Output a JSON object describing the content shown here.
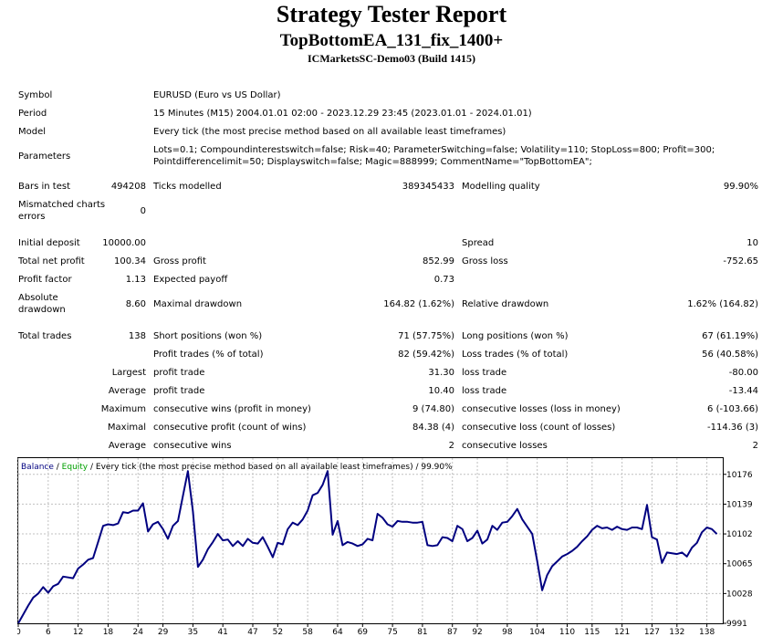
{
  "header": {
    "title": "Strategy Tester Report",
    "subtitle": "TopBottomEA_131_fix_1400+",
    "server": "ICMarketsSC-Demo03 (Build 1415)"
  },
  "info": {
    "symbol_label": "Symbol",
    "symbol_value": "EURUSD (Euro vs US Dollar)",
    "period_label": "Period",
    "period_value": "15 Minutes (M15) 2004.01.01 02:00 - 2023.12.29 23:45 (2023.01.01 - 2024.01.01)",
    "model_label": "Model",
    "model_value": "Every tick (the most precise method based on all available least timeframes)",
    "parameters_label": "Parameters",
    "parameters_line1": "Lots=0.1; Compoundinterestswitch=false; Risk=40; ParameterSwitching=false; Volatility=110; StopLoss=800; Profit=300;",
    "parameters_line2": "Pointdifferencelimit=50; Displayswitch=false; Magic=888999; CommentName=\"TopBottomEA\";"
  },
  "stats": {
    "bars_label": "Bars in test",
    "bars_value": "494208",
    "ticks_label": "Ticks modelled",
    "ticks_value": "389345433",
    "quality_label": "Modelling quality",
    "quality_value": "99.90%",
    "mismatched_label": "Mismatched charts errors",
    "mismatched_value": "0",
    "deposit_label": "Initial deposit",
    "deposit_value": "10000.00",
    "spread_label": "Spread",
    "spread_value": "10",
    "netprofit_label": "Total net profit",
    "netprofit_value": "100.34",
    "grossprofit_label": "Gross profit",
    "grossprofit_value": "852.99",
    "grossloss_label": "Gross loss",
    "grossloss_value": "-752.65",
    "pf_label": "Profit factor",
    "pf_value": "1.13",
    "payoff_label": "Expected payoff",
    "payoff_value": "0.73",
    "absdd_label": "Absolute drawdown",
    "absdd_value": "8.60",
    "maxdd_label": "Maximal drawdown",
    "maxdd_value": "164.82 (1.62%)",
    "reldd_label": "Relative drawdown",
    "reldd_value": "1.62% (164.82)",
    "trades_label": "Total trades",
    "trades_value": "138",
    "short_label": "Short positions (won %)",
    "short_value": "71 (57.75%)",
    "long_label": "Long positions (won %)",
    "long_value": "67 (61.19%)",
    "ptrades_label": "Profit trades (% of total)",
    "ptrades_value": "82 (59.42%)",
    "ltrades_label": "Loss trades (% of total)",
    "ltrades_value": "56 (40.58%)",
    "largest_label": "Largest",
    "largest_p_label": "profit trade",
    "largest_p_value": "31.30",
    "largest_l_label": "loss trade",
    "largest_l_value": "-80.00",
    "average_label": "Average",
    "average_p_label": "profit trade",
    "average_p_value": "10.40",
    "average_l_label": "loss trade",
    "average_l_value": "-13.44",
    "maximum_label": "Maximum",
    "maximum_w_label": "consecutive wins (profit in money)",
    "maximum_w_value": "9 (74.80)",
    "maximum_l_label": "consecutive losses (loss in money)",
    "maximum_l_value": "6 (-103.66)",
    "maximal_label": "Maximal",
    "maximal_w_label": "consecutive profit (count of wins)",
    "maximal_w_value": "84.38 (4)",
    "maximal_l_label": "consecutive loss (count of losses)",
    "maximal_l_value": "-114.36 (3)",
    "avgc_label": "Average",
    "avgc_w_label": "consecutive wins",
    "avgc_w_value": "2",
    "avgc_l_label": "consecutive losses",
    "avgc_l_value": "2"
  },
  "chart_data": {
    "type": "line",
    "legend": {
      "balance": "Balance",
      "sep1": " / ",
      "equity": "Equity",
      "rest": " / Every tick (the most precise method based on all available least timeframes) / 99.90%"
    },
    "colors": {
      "balance": "#000080",
      "equity": "#00a000",
      "grid": "#c0c0c0"
    },
    "ylim": [
      9991,
      10195
    ],
    "xlim": [
      0,
      141
    ],
    "y_ticks": [
      10176,
      10139,
      10102,
      10065,
      10028,
      9991
    ],
    "x_ticks": [
      0,
      6,
      12,
      18,
      24,
      29,
      35,
      41,
      47,
      52,
      58,
      64,
      69,
      75,
      81,
      87,
      92,
      98,
      104,
      110,
      115,
      121,
      127,
      132,
      138
    ],
    "series": [
      {
        "name": "Balance",
        "x": [
          0,
          1,
          2,
          3,
          4,
          5,
          6,
          7,
          8,
          9,
          10,
          11,
          12,
          13,
          14,
          15,
          16,
          17,
          18,
          19,
          20,
          21,
          22,
          23,
          24,
          25,
          26,
          27,
          28,
          29,
          30,
          31,
          32,
          33,
          34,
          35,
          36,
          37,
          38,
          39,
          40,
          41,
          42,
          43,
          44,
          45,
          46,
          47,
          48,
          49,
          50,
          51,
          52,
          53,
          54,
          55,
          56,
          57,
          58,
          59,
          60,
          61,
          62,
          63,
          64,
          65,
          66,
          67,
          68,
          69,
          70,
          71,
          72,
          73,
          74,
          75,
          76,
          77,
          78,
          79,
          80,
          81,
          82,
          83,
          84,
          85,
          86,
          87,
          88,
          89,
          90,
          91,
          92,
          93,
          94,
          95,
          96,
          97,
          98,
          99,
          100,
          101,
          102,
          103,
          104,
          105,
          106,
          107,
          108,
          109,
          110,
          111,
          112,
          113,
          114,
          115,
          116,
          117,
          118,
          119,
          120,
          121,
          122,
          123,
          124,
          125,
          126,
          127,
          128,
          129,
          130,
          131,
          132,
          133,
          134,
          135,
          136,
          137,
          138,
          139,
          140
        ],
        "values": [
          9991,
          10002,
          10013,
          10023,
          10028,
          10036,
          10029,
          10037,
          10040,
          10049,
          10048,
          10047,
          10059,
          10064,
          10070,
          10072,
          10092,
          10112,
          10114,
          10113,
          10115,
          10129,
          10128,
          10131,
          10131,
          10140,
          10105,
          10114,
          10117,
          10108,
          10096,
          10112,
          10118,
          10149,
          10180,
          10130,
          10061,
          10070,
          10083,
          10092,
          10102,
          10094,
          10095,
          10087,
          10093,
          10087,
          10096,
          10091,
          10090,
          10098,
          10086,
          10073,
          10091,
          10089,
          10108,
          10116,
          10113,
          10120,
          10131,
          10150,
          10153,
          10163,
          10180,
          10101,
          10118,
          10088,
          10092,
          10090,
          10087,
          10089,
          10096,
          10094,
          10127,
          10122,
          10114,
          10111,
          10118,
          10117,
          10117,
          10116,
          10116,
          10117,
          10088,
          10087,
          10088,
          10098,
          10097,
          10093,
          10112,
          10108,
          10093,
          10097,
          10106,
          10090,
          10095,
          10112,
          10107,
          10116,
          10117,
          10124,
          10133,
          10120,
          10111,
          10102,
          10068,
          10032,
          10051,
          10062,
          10068,
          10074,
          10077,
          10081,
          10086,
          10093,
          10099,
          10107,
          10112,
          10109,
          10110,
          10107,
          10111,
          10108,
          10107,
          10110,
          10110,
          10108,
          10138,
          10098,
          10095,
          10066,
          10079,
          10078,
          10077,
          10079,
          10074,
          10085,
          10091,
          10104,
          10110,
          10108,
          10102
        ]
      }
    ]
  }
}
